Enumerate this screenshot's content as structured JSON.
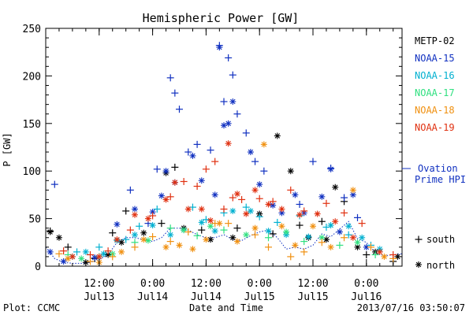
{
  "chart_data": {
    "type": "scatter",
    "title": "Hemispheric Power [GW]",
    "ylabel": "P [GW]",
    "xlabel": "Date and Time",
    "ylim": [
      0,
      250
    ],
    "yticks": [
      0,
      50,
      100,
      150,
      200,
      250
    ],
    "xlim_hours": [
      0,
      80
    ],
    "xticks": [
      {
        "hours": 12,
        "time": "12:00",
        "date": "Jul13"
      },
      {
        "hours": 24,
        "time": "0:00",
        "date": "Jul14"
      },
      {
        "hours": 36,
        "time": "12:00",
        "date": "Jul14"
      },
      {
        "hours": 48,
        "time": "0:00",
        "date": "Jul15"
      },
      {
        "hours": 60,
        "time": "12:00",
        "date": "Jul15"
      },
      {
        "hours": 72,
        "time": "0:00",
        "date": "Jul16"
      }
    ],
    "legend_placement": "right",
    "series": [
      {
        "name": "METP-02",
        "color": "#000000",
        "south": [
          [
            1,
            37
          ],
          [
            5,
            20
          ],
          [
            11,
            8
          ],
          [
            15,
            35
          ],
          [
            18,
            58
          ],
          [
            26,
            45
          ],
          [
            29,
            104
          ],
          [
            35,
            38
          ],
          [
            43,
            40
          ],
          [
            51,
            34
          ],
          [
            57,
            43
          ],
          [
            62,
            47
          ],
          [
            67,
            68
          ],
          [
            72,
            12
          ],
          [
            78,
            5
          ]
        ],
        "north": [
          [
            1,
            36
          ],
          [
            3,
            30
          ],
          [
            9,
            4
          ],
          [
            14,
            12
          ],
          [
            17,
            25
          ],
          [
            22,
            35
          ],
          [
            27,
            98
          ],
          [
            31,
            40
          ],
          [
            37,
            28
          ],
          [
            42,
            30
          ],
          [
            48,
            55
          ],
          [
            52,
            137
          ],
          [
            55,
            100
          ],
          [
            59,
            30
          ],
          [
            63,
            28
          ],
          [
            65,
            83
          ],
          [
            70,
            20
          ],
          [
            74,
            15
          ],
          [
            79,
            10
          ]
        ]
      },
      {
        "name": "NOAA-15",
        "color": "#1030c0",
        "south": [
          [
            2,
            86
          ],
          [
            19,
            80
          ],
          [
            23,
            45
          ],
          [
            25,
            102
          ],
          [
            28,
            198
          ],
          [
            29,
            182
          ],
          [
            30,
            165
          ],
          [
            32,
            120
          ],
          [
            34,
            128
          ],
          [
            37,
            122
          ],
          [
            39,
            232
          ],
          [
            40,
            173
          ],
          [
            41,
            219
          ],
          [
            42,
            201
          ],
          [
            43,
            160
          ],
          [
            45,
            140
          ],
          [
            47,
            110
          ],
          [
            49,
            100
          ],
          [
            57,
            65
          ],
          [
            60,
            110
          ],
          [
            64,
            103
          ],
          [
            67,
            72
          ],
          [
            70,
            51
          ]
        ],
        "north": [
          [
            1,
            15
          ],
          [
            4,
            5
          ],
          [
            11,
            9
          ],
          [
            16,
            44
          ],
          [
            20,
            60
          ],
          [
            24,
            57
          ],
          [
            26,
            74
          ],
          [
            27,
            100
          ],
          [
            29,
            88
          ],
          [
            33,
            116
          ],
          [
            35,
            90
          ],
          [
            38,
            75
          ],
          [
            39,
            230
          ],
          [
            40,
            148
          ],
          [
            41,
            150
          ],
          [
            42,
            173
          ],
          [
            46,
            120
          ],
          [
            48,
            86
          ],
          [
            51,
            64
          ],
          [
            53,
            56
          ],
          [
            56,
            75
          ],
          [
            58,
            56
          ],
          [
            62,
            73
          ],
          [
            64,
            102
          ],
          [
            66,
            36
          ],
          [
            69,
            75
          ],
          [
            72,
            20
          ]
        ]
      },
      {
        "name": "NOAA-16",
        "color": "#00b0d0",
        "south": [
          [
            7,
            15
          ],
          [
            12,
            20
          ],
          [
            18,
            28
          ],
          [
            21,
            42
          ],
          [
            25,
            60
          ],
          [
            33,
            62
          ],
          [
            36,
            49
          ],
          [
            40,
            56
          ],
          [
            45,
            62
          ],
          [
            48,
            52
          ],
          [
            52,
            46
          ],
          [
            57,
            53
          ],
          [
            63,
            41
          ],
          [
            68,
            33
          ],
          [
            73,
            22
          ]
        ],
        "north": [
          [
            6,
            10
          ],
          [
            9,
            15
          ],
          [
            13,
            13
          ],
          [
            16,
            27
          ],
          [
            20,
            33
          ],
          [
            24,
            43
          ],
          [
            28,
            33
          ],
          [
            31,
            38
          ],
          [
            35,
            46
          ],
          [
            38,
            37
          ],
          [
            42,
            58
          ],
          [
            46,
            58
          ],
          [
            50,
            37
          ],
          [
            54,
            33
          ],
          [
            59,
            31
          ],
          [
            64,
            43
          ],
          [
            68,
            42
          ],
          [
            71,
            30
          ],
          [
            75,
            18
          ]
        ]
      },
      {
        "name": "NOAA-17",
        "color": "#30e080",
        "south": [
          [
            5,
            12
          ],
          [
            12,
            10
          ],
          [
            20,
            25
          ],
          [
            28,
            40
          ],
          [
            34,
            32
          ],
          [
            40,
            38
          ],
          [
            50,
            30
          ],
          [
            58,
            26
          ],
          [
            66,
            22
          ],
          [
            74,
            12
          ]
        ],
        "north": [
          [
            8,
            8
          ],
          [
            15,
            13
          ],
          [
            23,
            27
          ],
          [
            31,
            38
          ],
          [
            37,
            42
          ],
          [
            45,
            33
          ],
          [
            54,
            36
          ],
          [
            62,
            30
          ],
          [
            70,
            25
          ]
        ]
      },
      {
        "name": "NOAA-18",
        "color": "#f09010",
        "south": [
          [
            3,
            13
          ],
          [
            10,
            5
          ],
          [
            15,
            10
          ],
          [
            20,
            20
          ],
          [
            24,
            31
          ],
          [
            28,
            26
          ],
          [
            32,
            36
          ],
          [
            38,
            45
          ],
          [
            41,
            45
          ],
          [
            47,
            33
          ],
          [
            50,
            20
          ],
          [
            55,
            10
          ],
          [
            58,
            15
          ],
          [
            62,
            25
          ],
          [
            67,
            30
          ],
          [
            73,
            20
          ],
          [
            78,
            8
          ]
        ],
        "north": [
          [
            5,
            8
          ],
          [
            12,
            4
          ],
          [
            17,
            15
          ],
          [
            22,
            28
          ],
          [
            27,
            20
          ],
          [
            30,
            22
          ],
          [
            33,
            18
          ],
          [
            36,
            28
          ],
          [
            39,
            45
          ],
          [
            43,
            26
          ],
          [
            47,
            40
          ],
          [
            49,
            128
          ],
          [
            53,
            42
          ],
          [
            56,
            22
          ],
          [
            60,
            42
          ],
          [
            64,
            20
          ],
          [
            69,
            80
          ],
          [
            76,
            10
          ]
        ]
      },
      {
        "name": "NOAA-19",
        "color": "#e03010",
        "south": [
          [
            4,
            16
          ],
          [
            10,
            12
          ],
          [
            14,
            16
          ],
          [
            19,
            38
          ],
          [
            24,
            53
          ],
          [
            28,
            73
          ],
          [
            31,
            89
          ],
          [
            34,
            84
          ],
          [
            36,
            102
          ],
          [
            38,
            110
          ],
          [
            40,
            60
          ],
          [
            42,
            72
          ],
          [
            44,
            70
          ],
          [
            48,
            71
          ],
          [
            51,
            68
          ],
          [
            55,
            80
          ],
          [
            58,
            58
          ],
          [
            63,
            66
          ],
          [
            67,
            56
          ],
          [
            71,
            45
          ],
          [
            78,
            12
          ]
        ],
        "north": [
          [
            6,
            10
          ],
          [
            12,
            10
          ],
          [
            16,
            28
          ],
          [
            20,
            54
          ],
          [
            23,
            50
          ],
          [
            27,
            70
          ],
          [
            29,
            88
          ],
          [
            32,
            60
          ],
          [
            35,
            60
          ],
          [
            37,
            48
          ],
          [
            41,
            129
          ],
          [
            43,
            76
          ],
          [
            45,
            55
          ],
          [
            47,
            80
          ],
          [
            50,
            65
          ],
          [
            53,
            60
          ],
          [
            57,
            54
          ],
          [
            61,
            55
          ],
          [
            65,
            47
          ],
          [
            69,
            30
          ],
          [
            75,
            15
          ]
        ]
      }
    ],
    "ovation": {
      "name": "Ovation Prime HPI",
      "color": "#1030c0",
      "points": [
        [
          0,
          20
        ],
        [
          2,
          8
        ],
        [
          4,
          4
        ],
        [
          6,
          3
        ],
        [
          8,
          3
        ],
        [
          10,
          4
        ],
        [
          12,
          7
        ],
        [
          14,
          12
        ],
        [
          16,
          25
        ],
        [
          18,
          30
        ],
        [
          20,
          30
        ],
        [
          22,
          28
        ],
        [
          24,
          26
        ],
        [
          26,
          30
        ],
        [
          28,
          40
        ],
        [
          30,
          40
        ],
        [
          32,
          38
        ],
        [
          34,
          33
        ],
        [
          36,
          30
        ],
        [
          38,
          30
        ],
        [
          40,
          33
        ],
        [
          42,
          28
        ],
        [
          44,
          27
        ],
        [
          46,
          32
        ],
        [
          48,
          36
        ],
        [
          50,
          38
        ],
        [
          52,
          30
        ],
        [
          54,
          18
        ],
        [
          56,
          20
        ],
        [
          58,
          18
        ],
        [
          60,
          22
        ],
        [
          62,
          34
        ],
        [
          64,
          31
        ],
        [
          66,
          39
        ],
        [
          68,
          47
        ],
        [
          70,
          29
        ],
        [
          72,
          25
        ],
        [
          74,
          14
        ],
        [
          76,
          11
        ],
        [
          78,
          12
        ],
        [
          80,
          13
        ]
      ]
    },
    "marker_legend": {
      "south": "south",
      "north": "north"
    }
  },
  "footer": {
    "left": "Plot: CCMC",
    "right": "2013/07/16 03:50:07"
  }
}
